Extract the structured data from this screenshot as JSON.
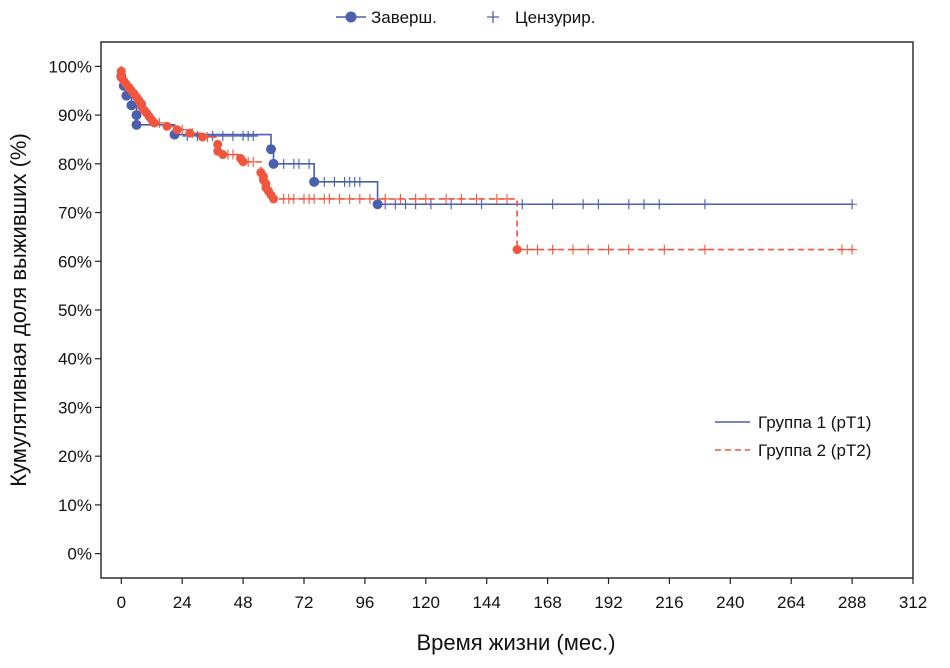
{
  "colors": {
    "group1": "#4a5fae",
    "group2": "#f0553e",
    "axis": "#222222"
  },
  "chart_data": {
    "type": "line",
    "chart_kind": "kaplan-meier step survival curve",
    "title": "",
    "xlabel": "Время жизни (мес.)",
    "ylabel": "Кумулятивная доля выживших (%)",
    "xlim": [
      -8,
      312
    ],
    "ylim": [
      -5,
      105
    ],
    "x_ticks": [
      0,
      24,
      48,
      72,
      96,
      120,
      144,
      168,
      192,
      216,
      240,
      264,
      288,
      312
    ],
    "y_ticks": [
      0,
      10,
      20,
      30,
      40,
      50,
      60,
      70,
      80,
      90,
      100
    ],
    "y_tick_suffix": "%",
    "grid": false,
    "top_legend": {
      "placement": "top-center",
      "completed_label": "Заверш.",
      "censored_label": "Цензурир."
    },
    "series_legend": {
      "placement": "right-lower",
      "entries": [
        {
          "label": "Группа 1 (pT1)",
          "line_style": "solid",
          "color_key": "group1"
        },
        {
          "label": "Группа 2 (pT2)",
          "line_style": "dashed",
          "color_key": "group2"
        }
      ]
    },
    "series": [
      {
        "name": "Группа 1 (pT1)",
        "line_style": "solid",
        "color_key": "group1",
        "steps": [
          [
            0,
            100
          ],
          [
            0,
            98
          ],
          [
            1,
            96
          ],
          [
            2,
            94
          ],
          [
            4,
            92
          ],
          [
            6,
            90
          ],
          [
            6,
            88
          ],
          [
            21,
            86
          ],
          [
            59,
            83
          ],
          [
            60,
            80
          ],
          [
            76,
            76.3
          ],
          [
            101,
            71.7
          ],
          [
            288,
            71.7
          ]
        ],
        "events": [
          [
            0,
            98
          ],
          [
            1,
            96
          ],
          [
            2,
            94
          ],
          [
            4,
            92
          ],
          [
            6,
            90
          ],
          [
            6,
            88
          ],
          [
            21,
            86
          ],
          [
            59,
            83
          ],
          [
            60,
            80
          ],
          [
            76,
            76.3
          ],
          [
            101,
            71.7
          ]
        ],
        "censored": [
          [
            26,
            85.7
          ],
          [
            30,
            85.7
          ],
          [
            36,
            85.7
          ],
          [
            40,
            85.7
          ],
          [
            44,
            85.7
          ],
          [
            48,
            85.7
          ],
          [
            50,
            85.7
          ],
          [
            52,
            85.7
          ],
          [
            64,
            80
          ],
          [
            68,
            80
          ],
          [
            70,
            80
          ],
          [
            74,
            80
          ],
          [
            80,
            76.3
          ],
          [
            84,
            76.3
          ],
          [
            88,
            76.3
          ],
          [
            90,
            76.3
          ],
          [
            92,
            76.3
          ],
          [
            94,
            76.3
          ],
          [
            104,
            71.7
          ],
          [
            108,
            71.7
          ],
          [
            112,
            71.7
          ],
          [
            116,
            71.7
          ],
          [
            122,
            71.7
          ],
          [
            130,
            71.7
          ],
          [
            142,
            71.7
          ],
          [
            158,
            71.7
          ],
          [
            170,
            71.7
          ],
          [
            182,
            71.7
          ],
          [
            188,
            71.7
          ],
          [
            200,
            71.7
          ],
          [
            206,
            71.7
          ],
          [
            212,
            71.7
          ],
          [
            230,
            71.7
          ],
          [
            288,
            71.7
          ]
        ]
      },
      {
        "name": "Группа 2 (pT2)",
        "line_style": "dashed",
        "color_key": "group2",
        "steps": [
          [
            0,
            100
          ],
          [
            0,
            99
          ],
          [
            0,
            98.3
          ],
          [
            0,
            97.7
          ],
          [
            1,
            97
          ],
          [
            2,
            96.3
          ],
          [
            3,
            95.7
          ],
          [
            4,
            95
          ],
          [
            5,
            94.4
          ],
          [
            6,
            93.7
          ],
          [
            7,
            93
          ],
          [
            8,
            92.3
          ],
          [
            8,
            91.7
          ],
          [
            9,
            91
          ],
          [
            10,
            90.4
          ],
          [
            11,
            89.7
          ],
          [
            12,
            89
          ],
          [
            13,
            88.4
          ],
          [
            18,
            87.7
          ],
          [
            22,
            87
          ],
          [
            27,
            86.3
          ],
          [
            32,
            85.5
          ],
          [
            38,
            84
          ],
          [
            38,
            82.6
          ],
          [
            40,
            81.9
          ],
          [
            47,
            81.1
          ],
          [
            48,
            80.4
          ],
          [
            55,
            78.2
          ],
          [
            56,
            77.4
          ],
          [
            56,
            76.7
          ],
          [
            57,
            75.9
          ],
          [
            57,
            75.1
          ],
          [
            58,
            74.4
          ],
          [
            59,
            73.6
          ],
          [
            60,
            72.8
          ],
          [
            62,
            72.8
          ],
          [
            156,
            72.8
          ],
          [
            156,
            62.4
          ],
          [
            288,
            62.4
          ]
        ],
        "events": [
          [
            0,
            99
          ],
          [
            0,
            98.3
          ],
          [
            0,
            97.7
          ],
          [
            1,
            97
          ],
          [
            2,
            96.3
          ],
          [
            3,
            95.7
          ],
          [
            4,
            95
          ],
          [
            5,
            94.4
          ],
          [
            6,
            93.7
          ],
          [
            7,
            93
          ],
          [
            8,
            92.3
          ],
          [
            8,
            91.7
          ],
          [
            9,
            91
          ],
          [
            10,
            90.4
          ],
          [
            11,
            89.7
          ],
          [
            12,
            89
          ],
          [
            13,
            88.4
          ],
          [
            18,
            87.7
          ],
          [
            22,
            87
          ],
          [
            27,
            86.3
          ],
          [
            32,
            85.5
          ],
          [
            38,
            84
          ],
          [
            38,
            82.6
          ],
          [
            40,
            81.9
          ],
          [
            47,
            81.1
          ],
          [
            48,
            80.4
          ],
          [
            55,
            78.2
          ],
          [
            56,
            77.4
          ],
          [
            56,
            76.7
          ],
          [
            57,
            75.9
          ],
          [
            57,
            75.1
          ],
          [
            58,
            74.4
          ],
          [
            59,
            73.6
          ],
          [
            60,
            72.8
          ],
          [
            156,
            62.4
          ]
        ],
        "censored": [
          [
            15,
            88.4
          ],
          [
            24,
            87
          ],
          [
            28,
            86.3
          ],
          [
            34,
            85.5
          ],
          [
            42,
            81.9
          ],
          [
            44,
            81.9
          ],
          [
            50,
            80.4
          ],
          [
            52,
            80.4
          ],
          [
            64,
            72.8
          ],
          [
            66,
            72.8
          ],
          [
            68,
            72.8
          ],
          [
            72,
            72.8
          ],
          [
            74,
            72.8
          ],
          [
            76,
            72.8
          ],
          [
            80,
            72.8
          ],
          [
            82,
            72.8
          ],
          [
            86,
            72.8
          ],
          [
            90,
            72.8
          ],
          [
            94,
            72.8
          ],
          [
            98,
            72.8
          ],
          [
            104,
            72.8
          ],
          [
            110,
            72.8
          ],
          [
            116,
            72.8
          ],
          [
            120,
            72.8
          ],
          [
            128,
            72.8
          ],
          [
            134,
            72.8
          ],
          [
            140,
            72.8
          ],
          [
            148,
            72.8
          ],
          [
            152,
            72.8
          ],
          [
            160,
            62.4
          ],
          [
            164,
            62.4
          ],
          [
            170,
            62.4
          ],
          [
            178,
            62.4
          ],
          [
            184,
            62.4
          ],
          [
            192,
            62.4
          ],
          [
            200,
            62.4
          ],
          [
            214,
            62.4
          ],
          [
            230,
            62.4
          ],
          [
            284,
            62.4
          ],
          [
            288,
            62.4
          ]
        ]
      }
    ]
  }
}
